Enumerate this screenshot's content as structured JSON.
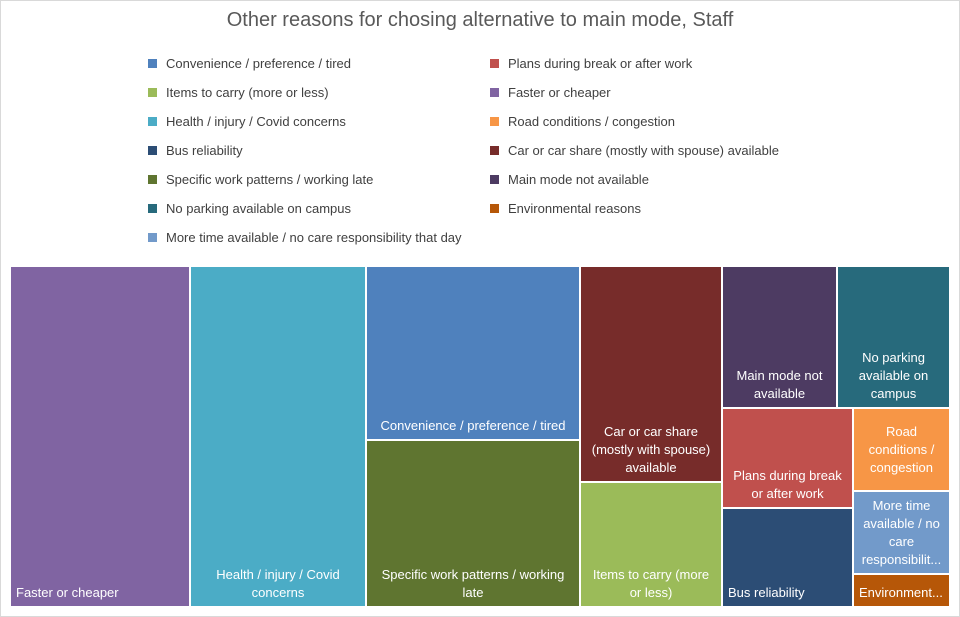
{
  "chart_data": {
    "type": "treemap",
    "title": "Other reasons for chosing alternative to main mode, Staff",
    "legend_placement": "top",
    "items": [
      {
        "name": "Convenience / preference / tired",
        "color": "#4f81bd",
        "tile_label": "Convenience / preference / tired"
      },
      {
        "name": "Plans during break or after work",
        "color": "#c0504d",
        "tile_label": "Plans during break or after work"
      },
      {
        "name": "Items to carry (more or less)",
        "color": "#9bbb59",
        "tile_label": "Items to carry (more or less)"
      },
      {
        "name": "Faster or cheaper",
        "color": "#8064a2",
        "tile_label": "Faster or cheaper"
      },
      {
        "name": "Health / injury / Covid concerns",
        "color": "#4bacc6",
        "tile_label": "Health / injury / Covid concerns"
      },
      {
        "name": "Road conditions / congestion",
        "color": "#f79646",
        "tile_label": "Road conditions / congestion"
      },
      {
        "name": "Bus reliability",
        "color": "#2c4d75",
        "tile_label": "Bus reliability"
      },
      {
        "name": "Car or car share (mostly with spouse) available",
        "color": "#772c2a",
        "tile_label": "Car or car share (mostly with spouse) available"
      },
      {
        "name": "Specific work patterns / working late",
        "color": "#5f7530",
        "tile_label": "Specific work patterns / working late"
      },
      {
        "name": "Main mode not available",
        "color": "#4d3b62",
        "tile_label": "Main mode not available"
      },
      {
        "name": "No parking available on campus",
        "color": "#276a7c",
        "tile_label": "No parking available on campus"
      },
      {
        "name": "Environmental reasons",
        "color": "#b65708",
        "tile_label": "Environment..."
      },
      {
        "name": "More time available / no care responsibility that day",
        "color": "#729aca",
        "tile_label": "More time available / no care responsibilit..."
      }
    ]
  }
}
